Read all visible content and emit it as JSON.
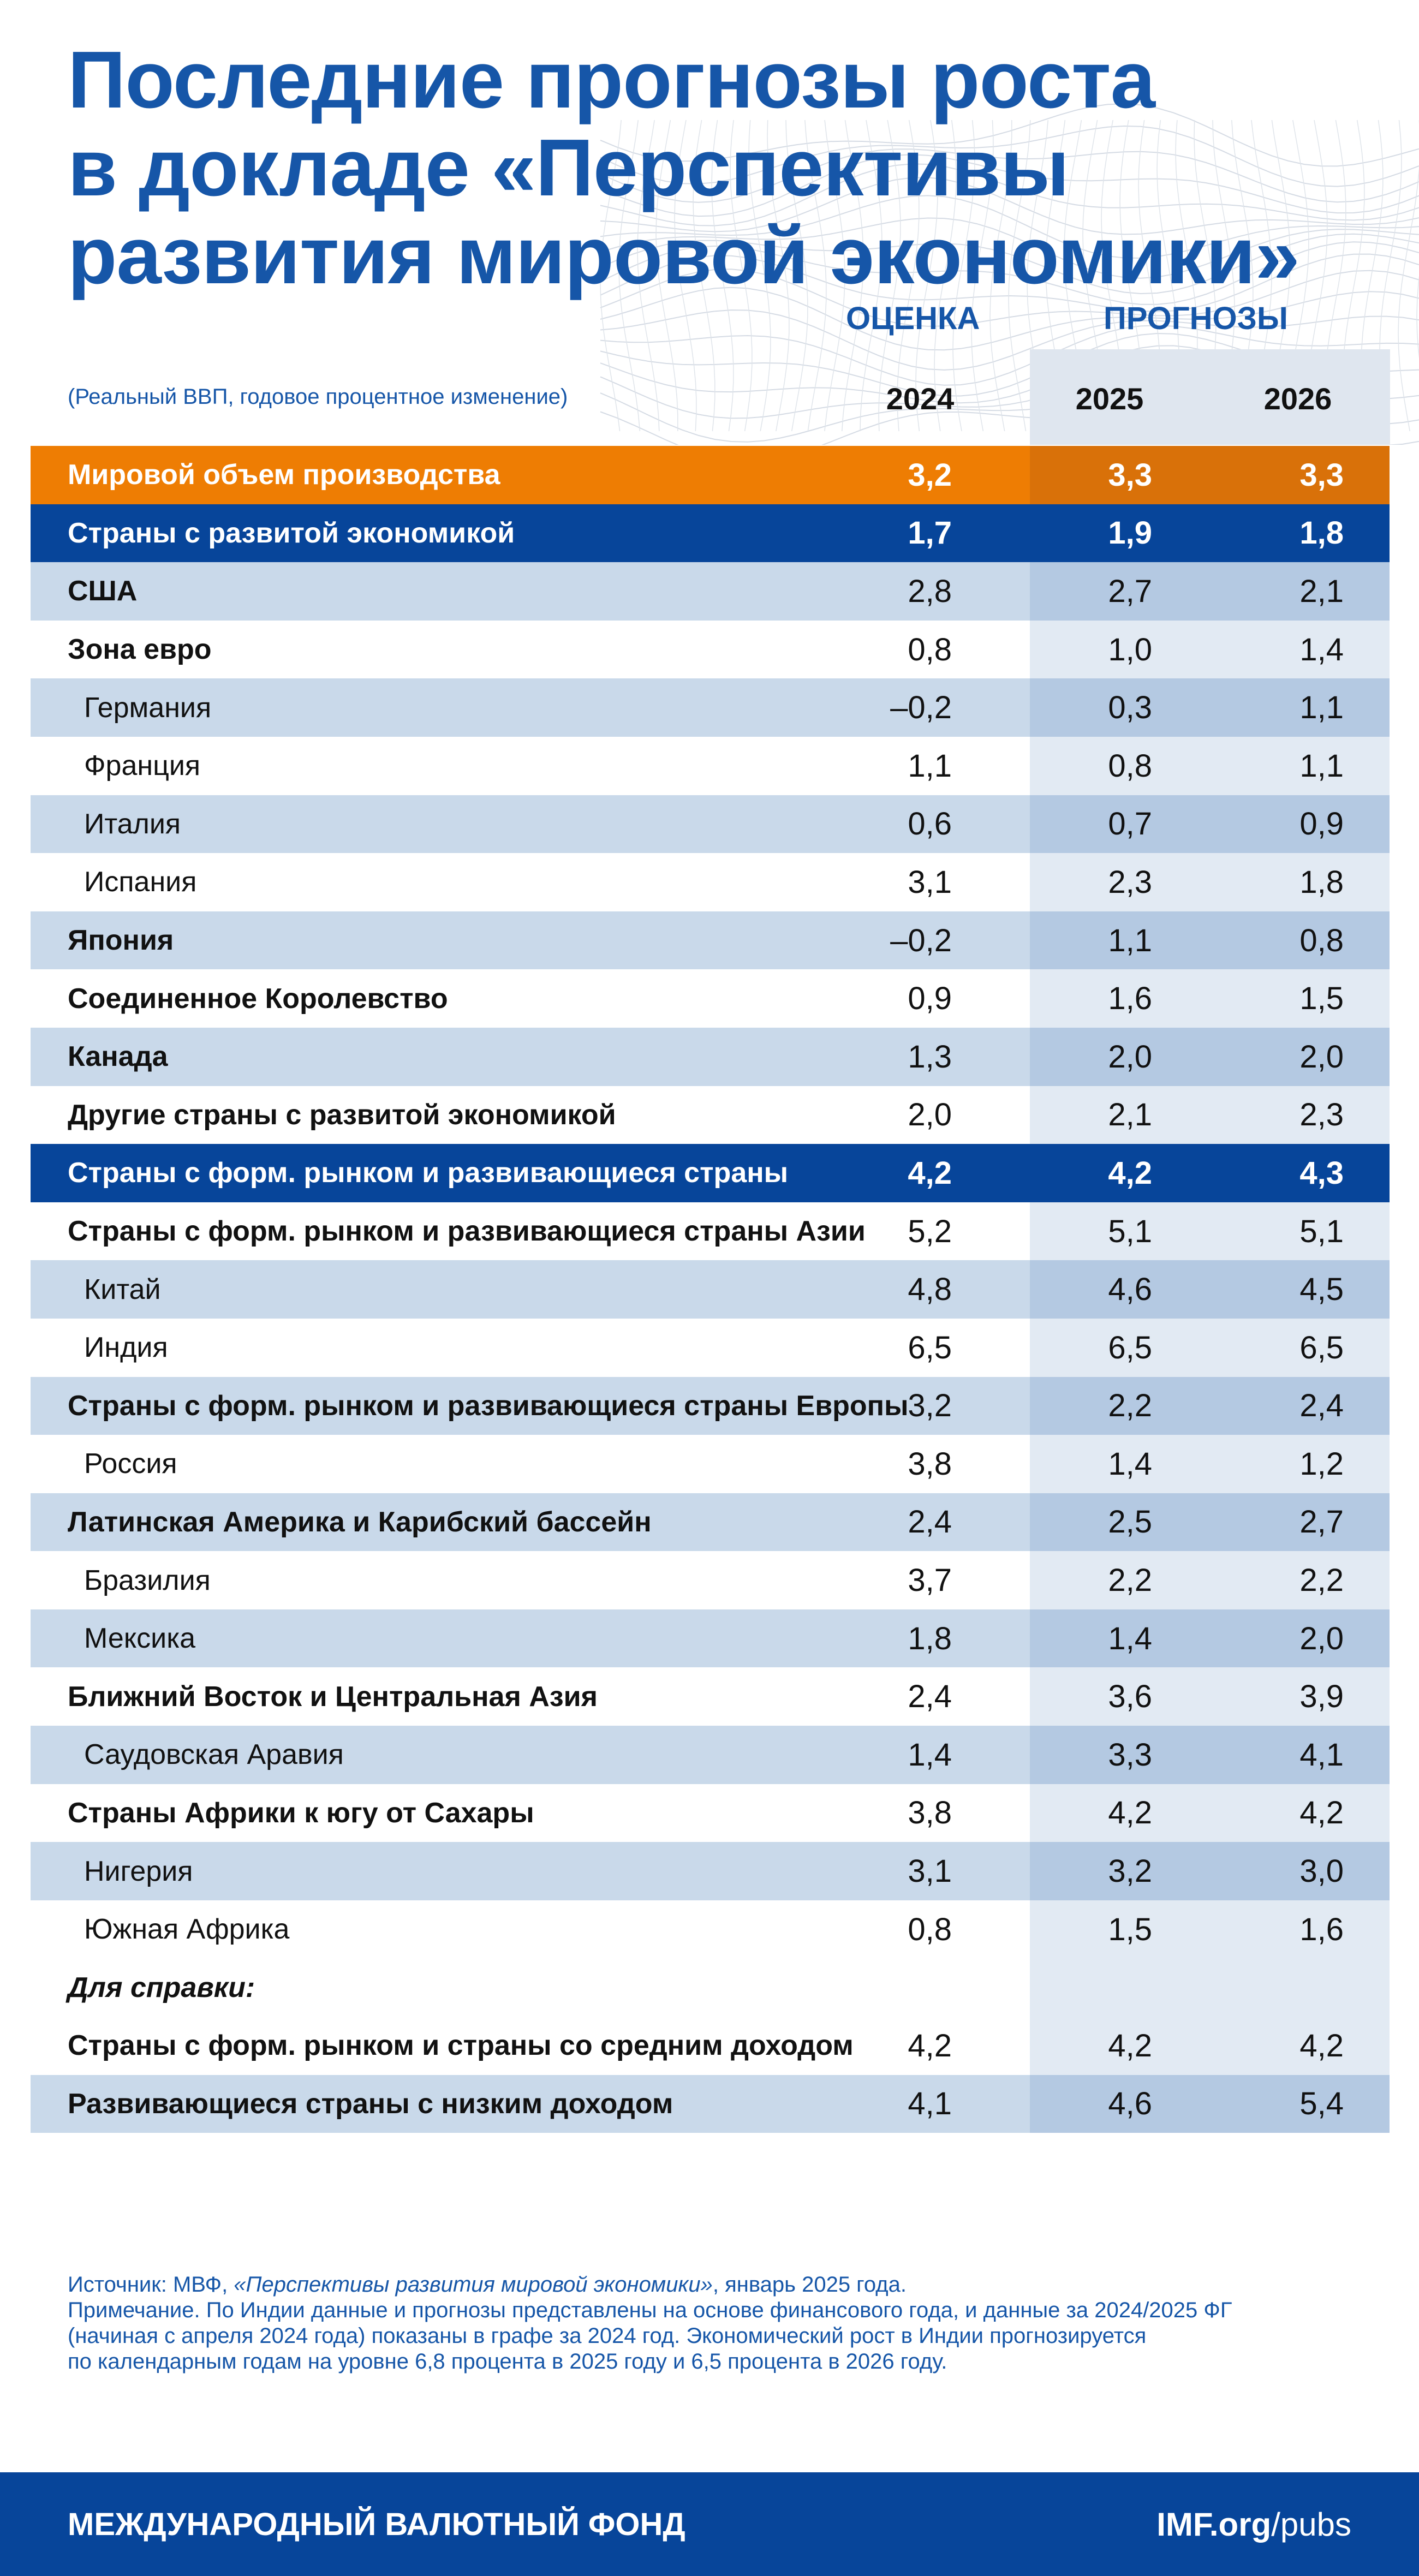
{
  "title_lines": [
    "Последние прогнозы роста",
    "в докладе «Перспективы",
    "развития мировой экономики»"
  ],
  "column_groups": {
    "estimate": "ОЦЕНКА",
    "projections": "ПРОГНОЗЫ"
  },
  "subtitle": "(Реальный ВВП, годовое процентное изменение)",
  "years": [
    "2024",
    "2025",
    "2026"
  ],
  "chart_data": {
    "type": "table",
    "columns": [
      "2024",
      "2025",
      "2026"
    ],
    "rows": [
      {
        "label": "Мировой объем производства",
        "style": "world",
        "values": [
          "3,2",
          "3,3",
          "3,3"
        ]
      },
      {
        "label": "Страны с развитой экономикой",
        "style": "group",
        "values": [
          "1,7",
          "1,9",
          "1,8"
        ]
      },
      {
        "label": "США",
        "style": "bold",
        "values": [
          "2,8",
          "2,7",
          "2,1"
        ]
      },
      {
        "label": "Зона евро",
        "style": "bold",
        "values": [
          "0,8",
          "1,0",
          "1,4"
        ]
      },
      {
        "label": "Германия",
        "style": "indent",
        "values": [
          "–0,2",
          "0,3",
          "1,1"
        ]
      },
      {
        "label": "Франция",
        "style": "indent",
        "values": [
          "1,1",
          "0,8",
          "1,1"
        ]
      },
      {
        "label": "Италия",
        "style": "indent",
        "values": [
          "0,6",
          "0,7",
          "0,9"
        ]
      },
      {
        "label": "Испания",
        "style": "indent",
        "values": [
          "3,1",
          "2,3",
          "1,8"
        ]
      },
      {
        "label": "Япония",
        "style": "bold",
        "values": [
          "–0,2",
          "1,1",
          "0,8"
        ]
      },
      {
        "label": "Соединенное Королевство",
        "style": "bold",
        "values": [
          "0,9",
          "1,6",
          "1,5"
        ]
      },
      {
        "label": "Канада",
        "style": "bold",
        "values": [
          "1,3",
          "2,0",
          "2,0"
        ]
      },
      {
        "label": "Другие страны с развитой экономикой",
        "style": "bold",
        "values": [
          "2,0",
          "2,1",
          "2,3"
        ]
      },
      {
        "label": "Страны с форм. рынком и развивающиеся страны",
        "style": "group",
        "values": [
          "4,2",
          "4,2",
          "4,3"
        ]
      },
      {
        "label": "Страны с форм. рынком и развивающиеся страны Азии",
        "style": "bold",
        "values": [
          "5,2",
          "5,1",
          "5,1"
        ]
      },
      {
        "label": "Китай",
        "style": "indent",
        "values": [
          "4,8",
          "4,6",
          "4,5"
        ]
      },
      {
        "label": "Индия",
        "style": "indent",
        "values": [
          "6,5",
          "6,5",
          "6,5"
        ]
      },
      {
        "label": "Страны с форм. рынком и развивающиеся страны Европы",
        "style": "bold",
        "values": [
          "3,2",
          "2,2",
          "2,4"
        ]
      },
      {
        "label": "Россия",
        "style": "indent",
        "values": [
          "3,8",
          "1,4",
          "1,2"
        ]
      },
      {
        "label": "Латинская Америка и Карибский бассейн",
        "style": "bold",
        "values": [
          "2,4",
          "2,5",
          "2,7"
        ]
      },
      {
        "label": "Бразилия",
        "style": "indent",
        "values": [
          "3,7",
          "2,2",
          "2,2"
        ]
      },
      {
        "label": "Мексика",
        "style": "indent",
        "values": [
          "1,8",
          "1,4",
          "2,0"
        ]
      },
      {
        "label": "Ближний Восток и Центральная Азия",
        "style": "bold",
        "values": [
          "2,4",
          "3,6",
          "3,9"
        ]
      },
      {
        "label": "Саудовская Аравия",
        "style": "indent",
        "values": [
          "1,4",
          "3,3",
          "4,1"
        ]
      },
      {
        "label": "Страны Африки к югу от Сахары",
        "style": "bold",
        "values": [
          "3,8",
          "4,2",
          "4,2"
        ]
      },
      {
        "label": "Нигерия",
        "style": "indent",
        "values": [
          "3,1",
          "3,2",
          "3,0"
        ]
      },
      {
        "label": "Южная Африка",
        "style": "indent",
        "values": [
          "0,8",
          "1,5",
          "1,6"
        ]
      },
      {
        "label": "Для справки:",
        "style": "note",
        "values": [
          "",
          "",
          ""
        ]
      },
      {
        "label": "Страны с форм. рынком и страны со средним доходом",
        "style": "bold",
        "values": [
          "4,2",
          "4,2",
          "4,2"
        ]
      },
      {
        "label": "Развивающиеся страны с низким доходом",
        "style": "bold",
        "values": [
          "4,1",
          "4,6",
          "5,4"
        ]
      }
    ]
  },
  "footnotes": {
    "source_prefix": "Источник: МВФ, ",
    "source_title": "«Перспективы развития мировой экономики»",
    "source_suffix": ", январь 2025 года.",
    "note_lines": [
      "Примечание. По Индии данные и прогнозы представлены на основе финансового года, и данные за 2024/2025 ФГ",
      "(начиная с апреля 2024 года) показаны в графе за 2024 год. Экономический рост в Индии  прогнозируется",
      "по календарным годам на уровне 6,8 процента в 2025 году и 6,5 процента в 2026 году."
    ]
  },
  "footer": {
    "org": "МЕЖДУНАРОДНЫЙ ВАЛЮТНЫЙ ФОНД",
    "site_bold": "IMF.org",
    "site_rest": "/pubs"
  },
  "colors": {
    "title_blue": "#1656a8",
    "navy": "#07459a",
    "orange": "#ee7d03",
    "band_blue": "#c9d9ea"
  }
}
